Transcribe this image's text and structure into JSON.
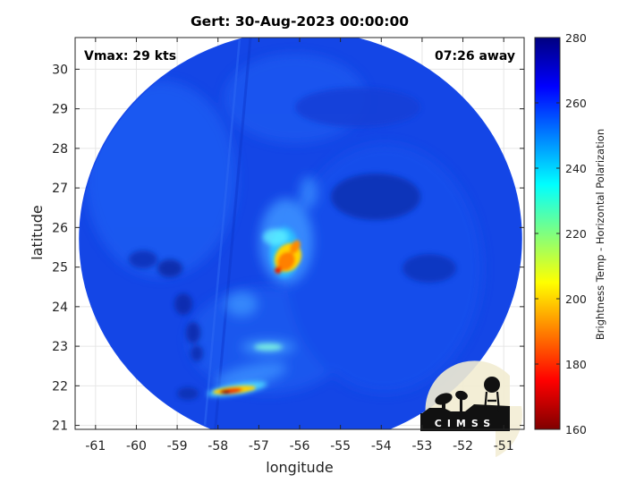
{
  "chart_data": {
    "type": "heatmap",
    "title": "Gert: 30-Aug-2023 00:00:00",
    "xlabel": "longitude",
    "ylabel": "latitude",
    "xlim": [
      -61.5,
      -50.5
    ],
    "ylim": [
      20.9,
      30.8
    ],
    "xticks": [
      -61,
      -60,
      -59,
      -58,
      -57,
      -56,
      -55,
      -54,
      -53,
      -52,
      -51
    ],
    "yticks": [
      21,
      22,
      23,
      24,
      25,
      26,
      27,
      28,
      29,
      30
    ],
    "grid": true,
    "annotations": {
      "vmax": "Vmax: 29 kts",
      "time_away": "07:26 away"
    },
    "colorbar": {
      "label": "Brightness Temp - Horizontal Polarization",
      "range": [
        160,
        280
      ],
      "ticks": [
        160,
        180,
        200,
        220,
        240,
        260,
        280
      ],
      "colormap": "jet"
    },
    "swath": {
      "center": [
        -56.0,
        25.4
      ],
      "radius_degrees": 5.3
    },
    "features": [
      {
        "type": "cold core",
        "lon": -56.45,
        "lat": 25.05,
        "min_temp": 190
      },
      {
        "type": "convective band",
        "lon": -57.85,
        "lat": 21.9,
        "min_temp": 182
      },
      {
        "type": "band segment",
        "lon": -56.9,
        "lat": 22.95,
        "min_temp": 230
      }
    ],
    "logo": "CIMSS"
  }
}
